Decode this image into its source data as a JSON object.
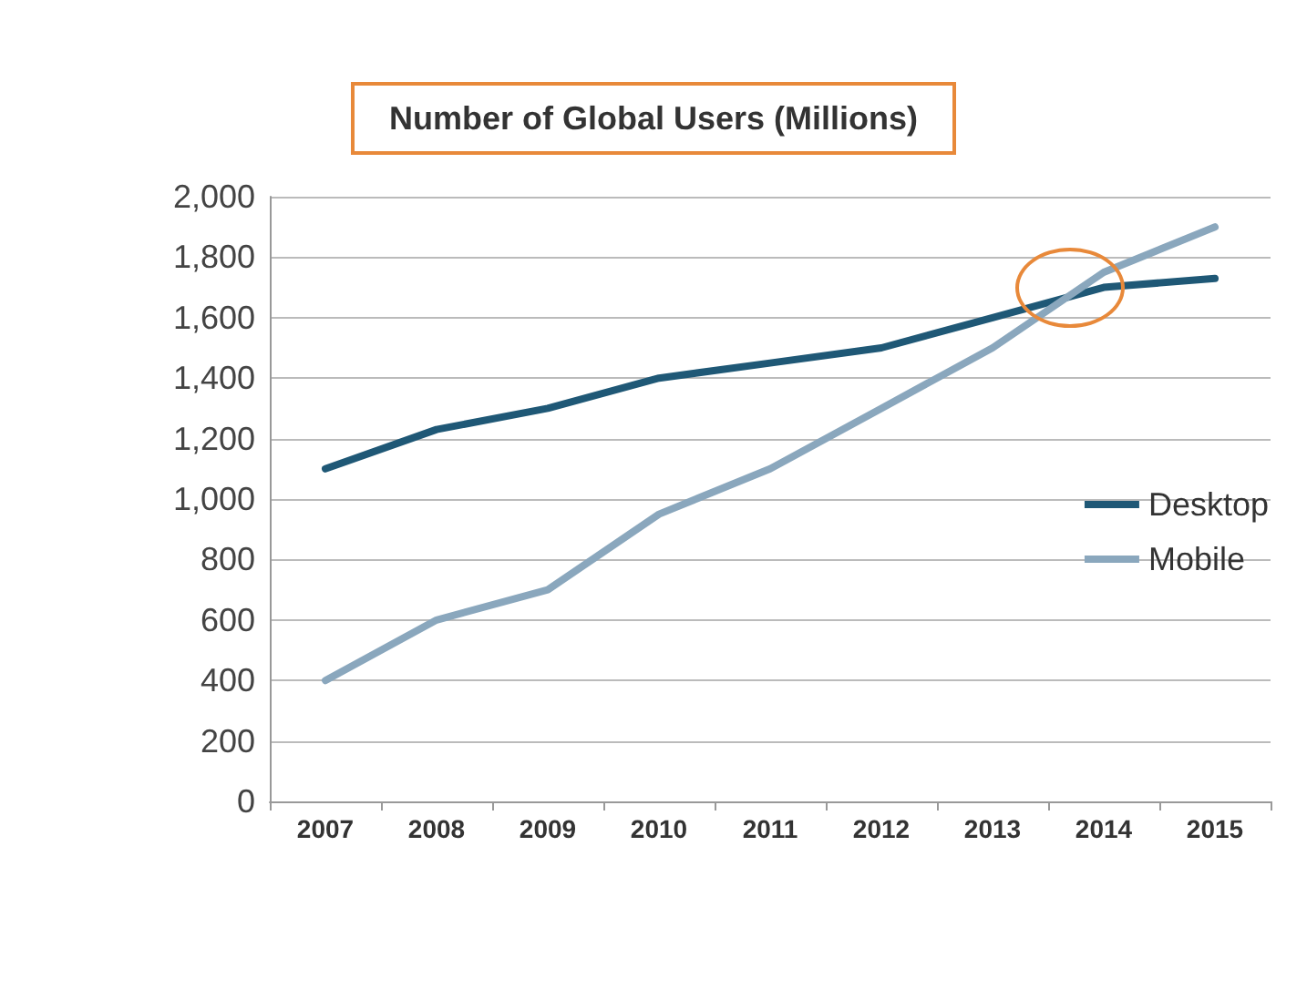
{
  "chart_data": {
    "type": "line",
    "title": "Number of Global Users (Millions)",
    "categories": [
      "2007",
      "2008",
      "2009",
      "2010",
      "2011",
      "2012",
      "2013",
      "2014",
      "2015"
    ],
    "series": [
      {
        "name": "Desktop",
        "color": "#1f5876",
        "values": [
          1100,
          1230,
          1300,
          1400,
          1450,
          1500,
          1600,
          1700,
          1730
        ]
      },
      {
        "name": "Mobile",
        "color": "#8aa7bd",
        "values": [
          400,
          600,
          700,
          950,
          1100,
          1300,
          1500,
          1750,
          1900
        ]
      }
    ],
    "ylim": [
      0,
      2000
    ],
    "yticks": [
      0,
      200,
      400,
      600,
      800,
      {
        "value": 1000,
        "label": "1,000"
      },
      {
        "value": 1200,
        "label": "1,200"
      },
      {
        "value": 1400,
        "label": "1,400"
      },
      {
        "value": 1600,
        "label": "1,600"
      },
      {
        "value": 1800,
        "label": "1,800"
      },
      {
        "value": 2000,
        "label": "2,000"
      }
    ],
    "grid": "y",
    "legend": "right",
    "marker": "none",
    "line_style": "solid"
  }
}
